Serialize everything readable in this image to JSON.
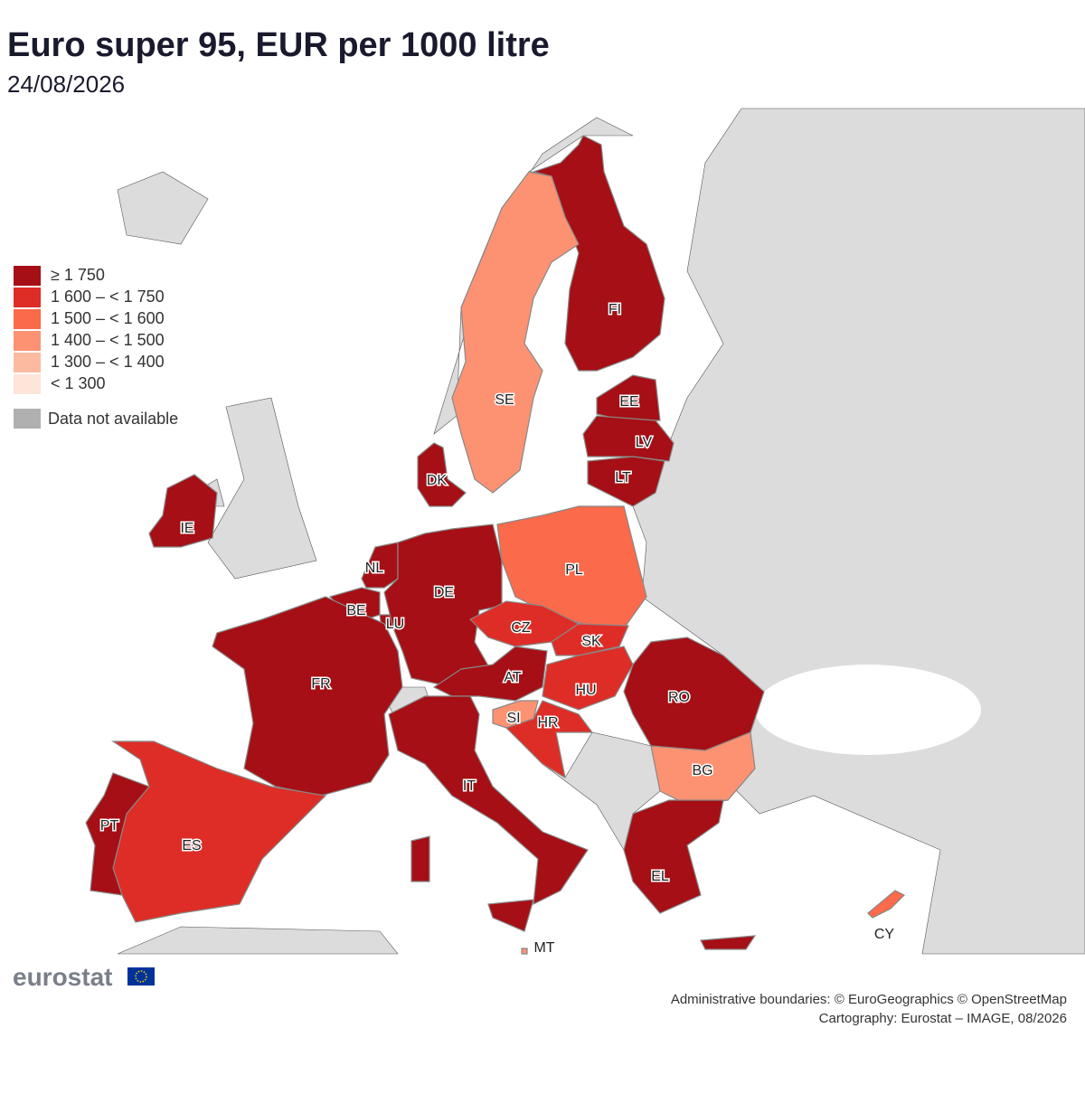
{
  "header": {
    "title": "Euro super 95, EUR per 1000 litre",
    "subtitle": "24/08/2026"
  },
  "legend": {
    "classes": [
      {
        "label": "≥ 1 750",
        "color": "#a50f15"
      },
      {
        "label": "1 600 – < 1 750",
        "color": "#de2d26"
      },
      {
        "label": "1 500 – < 1 600",
        "color": "#fb6a4a"
      },
      {
        "label": "1 400 – < 1 500",
        "color": "#fc9272"
      },
      {
        "label": "1 300 – < 1 400",
        "color": "#fcbba1"
      },
      {
        "label": "< 1 300",
        "color": "#fee5d9"
      }
    ],
    "not_available": {
      "label": "Data not available",
      "color": "#b0b0b0"
    }
  },
  "countries": [
    {
      "code": "FI",
      "class": 0
    },
    {
      "code": "SE",
      "class": 3
    },
    {
      "code": "EE",
      "class": 0
    },
    {
      "code": "LV",
      "class": 0
    },
    {
      "code": "LT",
      "class": 0
    },
    {
      "code": "DK",
      "class": 0
    },
    {
      "code": "IE",
      "class": 0
    },
    {
      "code": "NL",
      "class": 0
    },
    {
      "code": "BE",
      "class": 0
    },
    {
      "code": "LU",
      "class": 0
    },
    {
      "code": "DE",
      "class": 0
    },
    {
      "code": "PL",
      "class": 2
    },
    {
      "code": "CZ",
      "class": 1
    },
    {
      "code": "SK",
      "class": 1
    },
    {
      "code": "AT",
      "class": 0
    },
    {
      "code": "HU",
      "class": 1
    },
    {
      "code": "SI",
      "class": 3
    },
    {
      "code": "HR",
      "class": 1
    },
    {
      "code": "RO",
      "class": 0
    },
    {
      "code": "BG",
      "class": 3
    },
    {
      "code": "FR",
      "class": 0
    },
    {
      "code": "IT",
      "class": 0
    },
    {
      "code": "ES",
      "class": 1
    },
    {
      "code": "PT",
      "class": 0
    },
    {
      "code": "EL",
      "class": 0
    },
    {
      "code": "CY",
      "class": 2
    },
    {
      "code": "MT",
      "class": 3
    }
  ],
  "footer": {
    "logo": "eurostat",
    "credits": [
      "Administrative boundaries: © EuroGeographics © OpenStreetMap",
      "Cartography: Eurostat – IMAGE, 08/2026"
    ]
  }
}
